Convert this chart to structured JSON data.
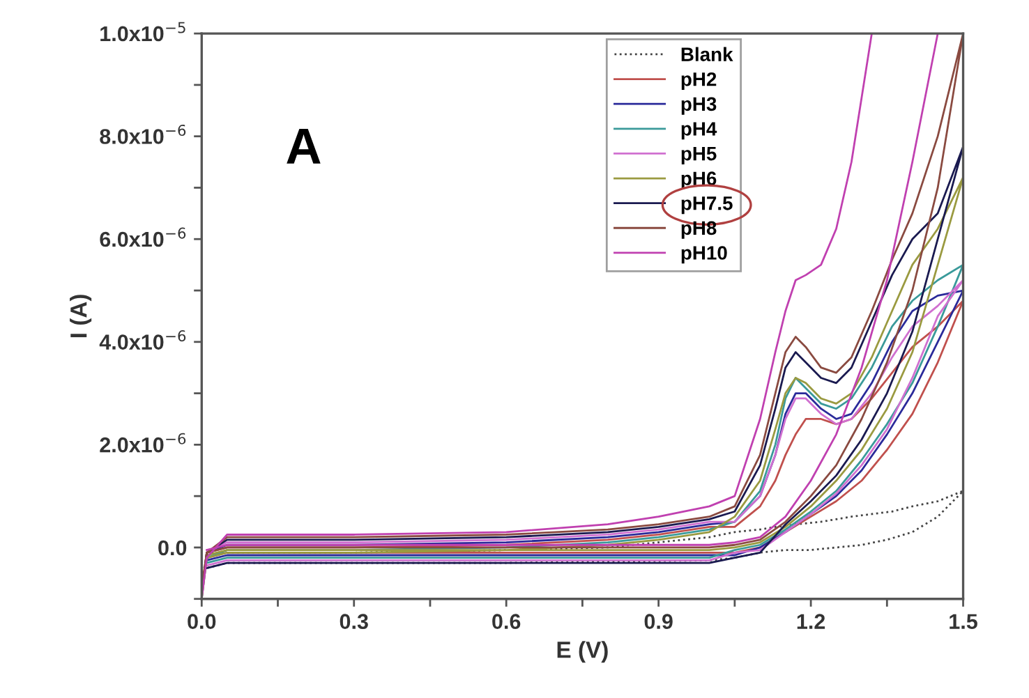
{
  "chart_data": {
    "type": "line",
    "xlabel": "E (V)",
    "ylabel": "I (A)",
    "annotations": [
      "A"
    ],
    "xlim": [
      0,
      1.5
    ],
    "ylim": [
      -1e-06,
      1e-05
    ],
    "xticks": [
      {
        "value": 0,
        "label": "0.0"
      },
      {
        "value": 0.15,
        "label": null
      },
      0.3,
      {
        "value": 0.45,
        "label": null
      },
      0.6,
      {
        "value": 0.75,
        "label": null
      },
      0.9,
      {
        "value": 1.05,
        "label": null
      },
      1.2,
      {
        "value": 1.35,
        "label": null
      },
      1.5
    ],
    "yticks": [
      {
        "value": -1e-06,
        "label": null
      },
      {
        "value": 0,
        "label": "0.0"
      },
      {
        "value": 1e-06,
        "label": null
      },
      {
        "value": 2e-06,
        "label": "2.0x10$^{−6}$"
      },
      {
        "value": 3e-06,
        "label": null
      },
      {
        "value": 4e-06,
        "label": "4.0x10$^{−6}$"
      },
      {
        "value": 5e-06,
        "label": null
      },
      {
        "value": 6e-06,
        "label": "6.0x10$^{−6}$"
      },
      {
        "value": 7e-06,
        "label": null
      },
      {
        "value": 8e-06,
        "label": "8.0x10$^{−6}$"
      },
      {
        "value": 9e-06,
        "label": null
      },
      {
        "value": 1e-05,
        "label": "1.0x10$^{−5}$"
      }
    ],
    "grid": false,
    "legend": "top",
    "marker": "none",
    "x": [
      0,
      0.01,
      0.05,
      0.3,
      0.6,
      0.8,
      0.9,
      1.0,
      1.05,
      1.1,
      1.13,
      1.15,
      1.17,
      1.19,
      1.22,
      1.25,
      1.28,
      1.32,
      1.36,
      1.4,
      1.45,
      1.5,
      1.45,
      1.4,
      1.35,
      1.3,
      1.25,
      1.2,
      1.15,
      1.1,
      1.05,
      1.0,
      0.6,
      0.2,
      0.05,
      0.01
    ],
    "series": [
      {
        "name": "Blank",
        "color": "#444444",
        "line_style": "dotted",
        "values": [
          -7e-07,
          -1e-07,
          -1e-07,
          -1e-07,
          -5e-08,
          0,
          1e-07,
          2e-07,
          3e-07,
          3.5e-07,
          4e-07,
          4.2e-07,
          4.5e-07,
          4.7e-07,
          5e-07,
          5.5e-07,
          6e-07,
          6.5e-07,
          7e-07,
          8e-07,
          9e-07,
          1.1e-06,
          6e-07,
          3e-07,
          1.5e-07,
          5e-08,
          0,
          -5e-08,
          -5e-08,
          -1e-07,
          -2e-07,
          -2.5e-07,
          -3e-07,
          -3e-07,
          -3e-07,
          -4e-07
        ]
      },
      {
        "name": "pH2",
        "color": "#c0504d",
        "line_style": "solid",
        "values": [
          -8e-07,
          -1e-07,
          0,
          0,
          5e-08,
          1.5e-07,
          2.5e-07,
          4e-07,
          4e-07,
          8e-07,
          1.3e-06,
          1.8e-06,
          2.2e-06,
          2.5e-06,
          2.5e-06,
          2.4e-06,
          2.5e-06,
          2.9e-06,
          3.4e-06,
          3.9e-06,
          4.3e-06,
          4.8e-06,
          3.6e-06,
          2.6e-06,
          1.9e-06,
          1.3e-06,
          9e-07,
          6e-07,
          3e-07,
          0,
          -1e-07,
          -1e-07,
          -1e-07,
          -1e-07,
          -1e-07,
          -2e-07
        ]
      },
      {
        "name": "pH3",
        "color": "#2a2a9a",
        "line_style": "solid",
        "values": [
          -9e-07,
          -1e-07,
          5e-08,
          5e-08,
          1e-07,
          2e-07,
          3e-07,
          4.5e-07,
          5e-07,
          1e-06,
          1.8e-06,
          2.6e-06,
          3e-06,
          3e-06,
          2.7e-06,
          2.5e-06,
          2.6e-06,
          3.2e-06,
          4e-06,
          4.6e-06,
          4.9e-06,
          5e-06,
          4e-06,
          3e-06,
          2.2e-06,
          1.5e-06,
          1e-06,
          6.5e-07,
          3e-07,
          0,
          -1.5e-07,
          -1.5e-07,
          -1.5e-07,
          -1.5e-07,
          -1.5e-07,
          -2.5e-07
        ]
      },
      {
        "name": "pH4",
        "color": "#3a9a9a",
        "line_style": "solid",
        "values": [
          -1e-06,
          -2e-07,
          -5e-08,
          -5e-08,
          0,
          1e-07,
          2e-07,
          3.5e-07,
          5e-07,
          1.1e-06,
          2e-06,
          2.9e-06,
          3.3e-06,
          3.1e-06,
          2.8e-06,
          2.7e-06,
          2.9e-06,
          3.5e-06,
          4.3e-06,
          4.8e-06,
          5.2e-06,
          5.5e-06,
          4.3e-06,
          3.2e-06,
          2.4e-06,
          1.7e-06,
          1.1e-06,
          7e-07,
          3.5e-07,
          5e-08,
          -5e-08,
          -2e-07,
          -2e-07,
          -2e-07,
          -2e-07,
          -3e-07
        ]
      },
      {
        "name": "pH5",
        "color": "#d070d0",
        "line_style": "solid",
        "values": [
          -9e-07,
          -1e-07,
          1e-07,
          1e-07,
          1.5e-07,
          2.5e-07,
          3.5e-07,
          5e-07,
          5e-07,
          1e-06,
          1.8e-06,
          2.5e-06,
          2.9e-06,
          2.9e-06,
          2.6e-06,
          2.4e-06,
          2.5e-06,
          3e-06,
          3.7e-06,
          4.3e-06,
          4.7e-06,
          5.2e-06,
          4.5e-06,
          3.3e-06,
          2.3e-06,
          1.6e-06,
          1.05e-06,
          6.5e-07,
          3e-07,
          -5e-08,
          -1e-07,
          -2.5e-07,
          -2.5e-07,
          -2.5e-07,
          -2.5e-07,
          -3.5e-07
        ]
      },
      {
        "name": "pH6",
        "color": "#9a9a40",
        "line_style": "solid",
        "values": [
          -1e-06,
          -2e-07,
          -1e-07,
          -1e-07,
          -5e-08,
          5e-08,
          1.5e-07,
          3e-07,
          6e-07,
          1.3e-06,
          2.3e-06,
          3e-06,
          3.3e-06,
          3.2e-06,
          2.9e-06,
          2.8e-06,
          3e-06,
          3.7e-06,
          4.6e-06,
          5.5e-06,
          6.2e-06,
          7.2e-06,
          5.5e-06,
          3.8e-06,
          2.7e-06,
          1.9e-06,
          1.3e-06,
          8e-07,
          4e-07,
          1e-07,
          0,
          -5e-08,
          -5e-08,
          -5e-08,
          -5e-08,
          -1.5e-07
        ]
      },
      {
        "name": "pH7.5",
        "color": "#1a1a50",
        "line_style": "solid",
        "values": [
          -9e-07,
          -1e-07,
          1.5e-07,
          1.5e-07,
          2e-07,
          3e-07,
          4e-07,
          5.5e-07,
          7e-07,
          1.6e-06,
          2.7e-06,
          3.5e-06,
          3.8e-06,
          3.6e-06,
          3.3e-06,
          3.2e-06,
          3.5e-06,
          4.4e-06,
          5.3e-06,
          6e-06,
          6.5e-06,
          7.8e-06,
          6e-06,
          4.2e-06,
          3e-06,
          2.1e-06,
          1.4e-06,
          9e-07,
          4.5e-07,
          -1e-07,
          -2e-07,
          -3e-07,
          -3e-07,
          -3e-07,
          -3e-07,
          -4e-07
        ]
      },
      {
        "name": "pH8",
        "color": "#8a4a40",
        "line_style": "solid",
        "values": [
          -8e-07,
          -1e-07,
          2e-07,
          2e-07,
          2.5e-07,
          3.5e-07,
          4.5e-07,
          6e-07,
          8e-07,
          1.8e-06,
          3e-06,
          3.8e-06,
          4.1e-06,
          3.9e-06,
          3.5e-06,
          3.4e-06,
          3.7e-06,
          4.6e-06,
          5.6e-06,
          6.5e-06,
          8e-06,
          1e-05,
          7e-06,
          5e-06,
          3.6e-06,
          2.5e-06,
          1.6e-06,
          1e-06,
          5e-07,
          1.5e-07,
          5e-08,
          0,
          0,
          0,
          0,
          -1e-07
        ]
      },
      {
        "name": "pH10",
        "color": "#c040b0",
        "line_style": "solid",
        "values": [
          -1e-06,
          -2e-07,
          2.5e-07,
          2.5e-07,
          3e-07,
          4.5e-07,
          6e-07,
          8e-07,
          1e-06,
          2.5e-06,
          3.8e-06,
          4.6e-06,
          5.2e-06,
          5.3e-06,
          5.5e-06,
          6.2e-06,
          7.5e-06,
          1e-05,
          null,
          null,
          null,
          null,
          1e-05,
          7.5e-06,
          5.2e-06,
          3.5e-06,
          2.2e-06,
          1.3e-06,
          6e-07,
          2e-07,
          1e-07,
          5e-08,
          5e-08,
          5e-08,
          5e-08,
          -5e-08
        ]
      }
    ]
  }
}
